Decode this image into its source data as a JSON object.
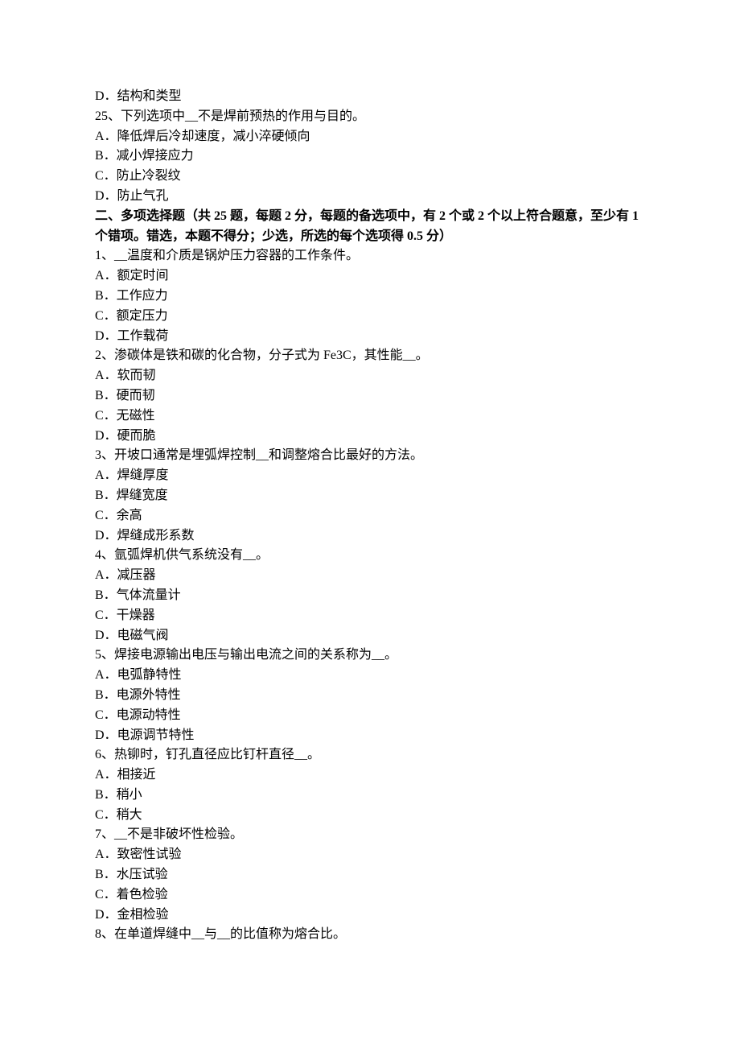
{
  "lines": [
    {
      "text": "D．结构和类型",
      "bold": false
    },
    {
      "text": "25、下列选项中__不是焊前预热的作用与目的。",
      "bold": false
    },
    {
      "text": "A．降低焊后冷却速度，减小淬硬倾向",
      "bold": false
    },
    {
      "text": "B．减小焊接应力",
      "bold": false
    },
    {
      "text": "C．防止冷裂纹",
      "bold": false
    },
    {
      "text": "D．防止气孔",
      "bold": false
    },
    {
      "text": "二、多项选择题（共 25 题，每题 2 分，每题的备选项中，有 2 个或 2 个以上符合题意，至少有 1 个错项。错选，本题不得分；少选，所选的每个选项得 0.5 分）",
      "bold": true
    },
    {
      "text": "1、__温度和介质是锅炉压力容器的工作条件。",
      "bold": false
    },
    {
      "text": "A．额定时间",
      "bold": false
    },
    {
      "text": "B．工作应力",
      "bold": false
    },
    {
      "text": "C．额定压力",
      "bold": false
    },
    {
      "text": "D．工作载荷",
      "bold": false
    },
    {
      "text": "2、渗碳体是铁和碳的化合物，分子式为 Fe3C，其性能__。",
      "bold": false
    },
    {
      "text": "A．软而韧",
      "bold": false
    },
    {
      "text": "B．硬而韧",
      "bold": false
    },
    {
      "text": "C．无磁性",
      "bold": false
    },
    {
      "text": "D．硬而脆",
      "bold": false
    },
    {
      "text": "3、开坡口通常是埋弧焊控制__和调整熔合比最好的方法。",
      "bold": false
    },
    {
      "text": "A．焊缝厚度",
      "bold": false
    },
    {
      "text": "B．焊缝宽度",
      "bold": false
    },
    {
      "text": "C．余高",
      "bold": false
    },
    {
      "text": "D．焊缝成形系数",
      "bold": false
    },
    {
      "text": "4、氩弧焊机供气系统没有__。",
      "bold": false
    },
    {
      "text": "A．减压器",
      "bold": false
    },
    {
      "text": "B．气体流量计",
      "bold": false
    },
    {
      "text": "C．干燥器",
      "bold": false
    },
    {
      "text": "D．电磁气阀",
      "bold": false
    },
    {
      "text": "5、焊接电源输出电压与输出电流之间的关系称为__。",
      "bold": false
    },
    {
      "text": "A．电弧静特性",
      "bold": false
    },
    {
      "text": "B．电源外特性",
      "bold": false
    },
    {
      "text": "C．电源动特性",
      "bold": false
    },
    {
      "text": "D．电源调节特性",
      "bold": false
    },
    {
      "text": "6、热铆时，钉孔直径应比钉杆直径__。",
      "bold": false
    },
    {
      "text": "A．相接近",
      "bold": false
    },
    {
      "text": "B．稍小",
      "bold": false
    },
    {
      "text": "C．稍大",
      "bold": false
    },
    {
      "text": "7、__不是非破坏性检验。",
      "bold": false
    },
    {
      "text": "A．致密性试验",
      "bold": false
    },
    {
      "text": "B．水压试验",
      "bold": false
    },
    {
      "text": "C．着色检验",
      "bold": false
    },
    {
      "text": "D．金相检验",
      "bold": false
    },
    {
      "text": "8、在单道焊缝中__与__的比值称为熔合比。",
      "bold": false
    }
  ]
}
